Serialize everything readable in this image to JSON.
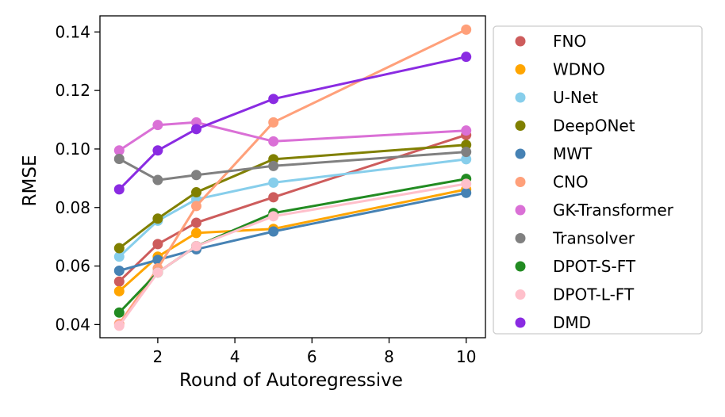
{
  "chart_data": {
    "type": "line",
    "title": "",
    "xlabel": "Round of Autoregressive",
    "ylabel": "RMSE",
    "x": [
      1,
      2,
      3,
      5,
      10
    ],
    "xlim": [
      0.5,
      10.5
    ],
    "ylim": [
      0.0355,
      0.1455
    ],
    "xticks": [
      2,
      4,
      6,
      8,
      10
    ],
    "yticks": [
      0.04,
      0.06,
      0.08,
      0.1,
      0.12,
      0.14
    ],
    "ytick_labels": [
      "0.04",
      "0.06",
      "0.08",
      "0.10",
      "0.12",
      "0.14"
    ],
    "grid": false,
    "legend_position": "outside-right",
    "series": [
      {
        "name": "FNO",
        "color": "#cd5c5c",
        "values": [
          0.0547,
          0.0675,
          0.0748,
          0.0835,
          0.1048
        ]
      },
      {
        "name": "WDNO",
        "color": "#ffa500",
        "values": [
          0.0514,
          0.0632,
          0.0713,
          0.0727,
          0.0862
        ]
      },
      {
        "name": "U-Net",
        "color": "#87ceeb",
        "values": [
          0.0632,
          0.0755,
          0.0828,
          0.0885,
          0.0965
        ]
      },
      {
        "name": "DeepONet",
        "color": "#808000",
        "values": [
          0.0661,
          0.0762,
          0.0852,
          0.0965,
          0.1014
        ]
      },
      {
        "name": "MWT",
        "color": "#4682b4",
        "values": [
          0.0584,
          0.0621,
          0.0657,
          0.0718,
          0.085
        ]
      },
      {
        "name": "CNO",
        "color": "#ffa07a",
        "values": [
          0.0402,
          0.0592,
          0.0805,
          0.1091,
          0.1408
        ]
      },
      {
        "name": "GK-Transformer",
        "color": "#da70d6",
        "values": [
          0.0995,
          0.1082,
          0.1091,
          0.1026,
          0.1063
        ]
      },
      {
        "name": "Transolver",
        "color": "#808080",
        "values": [
          0.0966,
          0.0894,
          0.0911,
          0.0942,
          0.099
        ]
      },
      {
        "name": "DPOT-S-FT",
        "color": "#228b22",
        "values": [
          0.0441,
          0.0578,
          0.0668,
          0.0781,
          0.0898
        ]
      },
      {
        "name": "DPOT-L-FT",
        "color": "#ffc0cb",
        "values": [
          0.0396,
          0.0578,
          0.0668,
          0.077,
          0.0881
        ]
      },
      {
        "name": "DMD",
        "color": "#8a2be2",
        "values": [
          0.0862,
          0.0995,
          0.1068,
          0.1171,
          0.1315
        ]
      }
    ]
  }
}
